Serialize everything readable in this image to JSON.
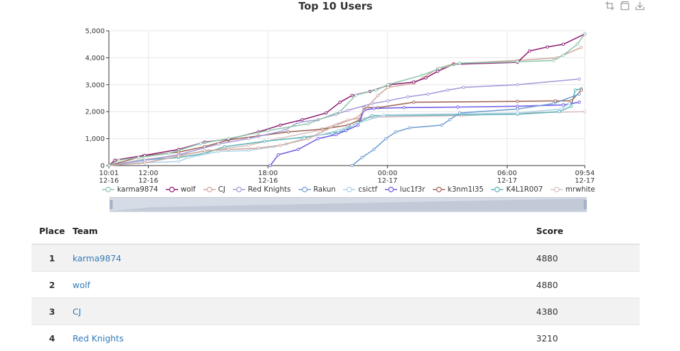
{
  "toolbox": {
    "icons": [
      "zoom-select-icon",
      "zoom-reset-icon",
      "save-image-icon"
    ]
  },
  "chart_data": {
    "type": "line",
    "title": "Top 10 Users",
    "ylim": [
      0,
      5000
    ],
    "y_ticks": [
      "0",
      "1,000",
      "2,000",
      "3,000",
      "4,000",
      "5,000"
    ],
    "x_ticks": [
      {
        "t": 0,
        "l1": "10:01",
        "l2": "12-16"
      },
      {
        "t": 1.98,
        "l1": "12:00",
        "l2": "12-16"
      },
      {
        "t": 7.98,
        "l1": "18:00",
        "l2": "12-16"
      },
      {
        "t": 13.98,
        "l1": "00:00",
        "l2": "12-17"
      },
      {
        "t": 19.98,
        "l1": "06:00",
        "l2": "12-17"
      },
      {
        "t": 23.88,
        "l1": "09:54",
        "l2": "12-17"
      }
    ],
    "xlim": [
      0,
      23.88
    ],
    "series": [
      {
        "name": "karma9874",
        "color": "#91c7ae",
        "points": [
          [
            0,
            0
          ],
          [
            0.5,
            200
          ],
          [
            1.5,
            300
          ],
          [
            3,
            450
          ],
          [
            4.6,
            820
          ],
          [
            6,
            1000
          ],
          [
            8,
            1300
          ],
          [
            10,
            1550
          ],
          [
            11.6,
            2000
          ],
          [
            12.4,
            2620
          ],
          [
            13.4,
            2800
          ],
          [
            14,
            3000
          ],
          [
            15.7,
            3350
          ],
          [
            16.6,
            3600
          ],
          [
            17.6,
            3800
          ],
          [
            20.5,
            3850
          ],
          [
            22.3,
            3900
          ],
          [
            22.8,
            4100
          ],
          [
            23.5,
            4500
          ],
          [
            23.88,
            4880
          ]
        ]
      },
      {
        "name": "wolf",
        "color": "#8f1f72",
        "points": [
          [
            0,
            0
          ],
          [
            0.3,
            200
          ],
          [
            1.8,
            380
          ],
          [
            3.5,
            600
          ],
          [
            4.8,
            870
          ],
          [
            6,
            980
          ],
          [
            7.5,
            1250
          ],
          [
            8.6,
            1500
          ],
          [
            9.7,
            1700
          ],
          [
            10.9,
            1950
          ],
          [
            11.6,
            2350
          ],
          [
            12.2,
            2600
          ],
          [
            13.1,
            2750
          ],
          [
            14.1,
            3000
          ],
          [
            15.3,
            3100
          ],
          [
            15.9,
            3250
          ],
          [
            16.5,
            3500
          ],
          [
            17.3,
            3760
          ],
          [
            20.5,
            3830
          ],
          [
            21.1,
            4250
          ],
          [
            22,
            4400
          ],
          [
            22.8,
            4500
          ],
          [
            23.88,
            4880
          ]
        ]
      },
      {
        "name": "CJ",
        "color": "#d0a9a0",
        "points": [
          [
            0,
            0
          ],
          [
            1.8,
            100
          ],
          [
            3.5,
            350
          ],
          [
            4.8,
            550
          ],
          [
            6,
            600
          ],
          [
            7.5,
            650
          ],
          [
            8.6,
            750
          ],
          [
            10,
            1000
          ],
          [
            11.4,
            1500
          ],
          [
            12.5,
            1800
          ],
          [
            13.5,
            2600
          ],
          [
            14,
            2900
          ],
          [
            15.3,
            3050
          ],
          [
            16.5,
            3600
          ],
          [
            17.3,
            3780
          ],
          [
            20.5,
            3900
          ],
          [
            22.5,
            4000
          ],
          [
            23.7,
            4380
          ]
        ]
      },
      {
        "name": "Red Knights",
        "color": "#a49bd8",
        "points": [
          [
            0,
            0
          ],
          [
            1.8,
            200
          ],
          [
            3.5,
            400
          ],
          [
            5.5,
            800
          ],
          [
            7,
            1000
          ],
          [
            8.8,
            1300
          ],
          [
            9.5,
            1600
          ],
          [
            10.5,
            1700
          ],
          [
            11.4,
            1900
          ],
          [
            12,
            2050
          ],
          [
            13.2,
            2300
          ],
          [
            14,
            2400
          ],
          [
            15,
            2550
          ],
          [
            16,
            2650
          ],
          [
            17,
            2800
          ],
          [
            17.8,
            2900
          ],
          [
            20.5,
            3000
          ],
          [
            23.6,
            3210
          ]
        ]
      },
      {
        "name": "Rakun",
        "color": "#73a0d0",
        "points": [
          [
            12.2,
            0
          ],
          [
            12.7,
            300
          ],
          [
            13.3,
            600
          ],
          [
            13.9,
            1000
          ],
          [
            14.4,
            1250
          ],
          [
            15.1,
            1400
          ],
          [
            16.7,
            1500
          ],
          [
            17.1,
            1700
          ],
          [
            17.6,
            1950
          ],
          [
            20.5,
            2100
          ],
          [
            22.3,
            2300
          ],
          [
            23.6,
            2650
          ]
        ]
      },
      {
        "name": "csictf",
        "color": "#afd3e8",
        "points": [
          [
            0,
            0
          ],
          [
            1.5,
            100
          ],
          [
            3.5,
            150
          ],
          [
            4,
            300
          ],
          [
            5.5,
            520
          ],
          [
            7,
            560
          ],
          [
            8.3,
            700
          ],
          [
            8.9,
            800
          ],
          [
            9.8,
            1000
          ],
          [
            11.5,
            1300
          ],
          [
            12.2,
            1500
          ],
          [
            13.8,
            1880
          ],
          [
            20.5,
            1950
          ],
          [
            22.7,
            2100
          ],
          [
            23.1,
            2300
          ]
        ]
      },
      {
        "name": "luc1f3r",
        "color": "#6f5de4",
        "points": [
          [
            8.1,
            0
          ],
          [
            8.5,
            400
          ],
          [
            9.5,
            600
          ],
          [
            10.5,
            1000
          ],
          [
            11.4,
            1150
          ],
          [
            11.9,
            1300
          ],
          [
            12.5,
            1500
          ],
          [
            12.8,
            2050
          ],
          [
            13.3,
            2120
          ],
          [
            14.8,
            2150
          ],
          [
            17.5,
            2170
          ],
          [
            20.5,
            2200
          ],
          [
            22.8,
            2250
          ],
          [
            23.6,
            2350
          ]
        ]
      },
      {
        "name": "k3nm1l35",
        "color": "#a0685a",
        "points": [
          [
            0,
            0
          ],
          [
            1.7,
            350
          ],
          [
            3.5,
            500
          ],
          [
            4.8,
            700
          ],
          [
            6,
            950
          ],
          [
            7.5,
            1100
          ],
          [
            9,
            1250
          ],
          [
            10.7,
            1350
          ],
          [
            12,
            1500
          ],
          [
            12.6,
            1700
          ],
          [
            12.8,
            2150
          ],
          [
            13.5,
            2150
          ],
          [
            15.3,
            2350
          ],
          [
            20.5,
            2380
          ],
          [
            22.4,
            2400
          ],
          [
            23.2,
            2400
          ],
          [
            23.7,
            2800
          ]
        ]
      },
      {
        "name": "K4L1R007",
        "color": "#5fb5b8",
        "points": [
          [
            0,
            0
          ],
          [
            1.7,
            200
          ],
          [
            3.5,
            300
          ],
          [
            4.8,
            450
          ],
          [
            5.8,
            700
          ],
          [
            7.8,
            900
          ],
          [
            9.8,
            1050
          ],
          [
            11.2,
            1200
          ],
          [
            11.8,
            1300
          ],
          [
            12.5,
            1600
          ],
          [
            13.2,
            1850
          ],
          [
            20.5,
            1900
          ],
          [
            22.6,
            2000
          ],
          [
            23.2,
            2200
          ],
          [
            23.4,
            2800
          ],
          [
            23.7,
            2850
          ]
        ]
      },
      {
        "name": "mrwhite",
        "color": "#dcc0c0",
        "points": [
          [
            0,
            0
          ],
          [
            1.5,
            200
          ],
          [
            3.2,
            350
          ],
          [
            5,
            550
          ],
          [
            7,
            750
          ],
          [
            8.5,
            1000
          ],
          [
            10.5,
            1300
          ],
          [
            12,
            1700
          ],
          [
            13.4,
            1800
          ],
          [
            17.7,
            1850
          ],
          [
            20.5,
            1950
          ],
          [
            23.88,
            2000
          ]
        ]
      }
    ]
  },
  "table": {
    "headers": {
      "place": "Place",
      "team": "Team",
      "score": "Score"
    },
    "rows": [
      {
        "place": "1",
        "team": "karma9874",
        "score": "4880"
      },
      {
        "place": "2",
        "team": "wolf",
        "score": "4880"
      },
      {
        "place": "3",
        "team": "CJ",
        "score": "4380"
      },
      {
        "place": "4",
        "team": "Red Knights",
        "score": "3210"
      }
    ]
  }
}
